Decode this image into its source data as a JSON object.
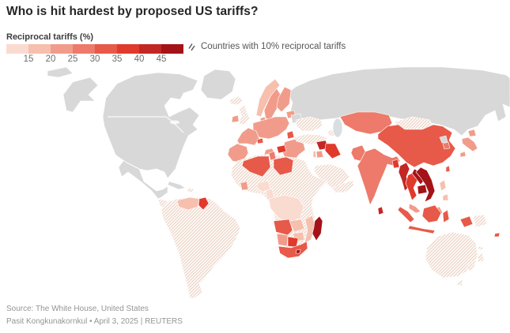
{
  "title": "Who is hit hardest by proposed US tariffs?",
  "footer": {
    "source": "Source: The White House, United States",
    "byline": "Pasit Kongkunakornkul • April 3, 2025 | REUTERS"
  },
  "colors": {
    "excluded_gray": "#d8d8d8",
    "hatch_stripe": "#eed6c9",
    "water": "#d9dee1",
    "border": "#ffffff",
    "title_text": "#252525",
    "note_text": "#565656",
    "source_text": "#959595"
  },
  "chart_data": {
    "type": "heatmap",
    "subtype": "world-choropleth",
    "title": "Who is hit hardest by proposed US tariffs?",
    "unit": "percent reciprocal tariff",
    "legend": {
      "label": "Reciprocal tariffs (%)",
      "ticks": [
        "15",
        "20",
        "25",
        "30",
        "35",
        "40",
        "45"
      ],
      "hatch_note": "Countries with 10% reciprocal tariffs"
    },
    "palette": [
      "#fadbd0",
      "#f6bfae",
      "#f19c8b",
      "#ed7a6a",
      "#e75948",
      "#e03a2c",
      "#c32723",
      "#a31318"
    ],
    "band_breaks": [
      15,
      20,
      25,
      30,
      35,
      40,
      45
    ],
    "regions": {
      "north-america": {
        "status": "excluded"
      },
      "greenland": {
        "status": "excluded"
      },
      "russia": {
        "status": "excluded"
      },
      "belarus": {
        "status": "excluded"
      },
      "cuba": {
        "status": "excluded"
      },
      "north-korea": {
        "status": "excluded"
      },
      "caspian-sea": {
        "status": "water"
      },
      "central-america": {
        "value": 10,
        "status": "hatched"
      },
      "nicaragua": {
        "value": 18
      },
      "hispaniola": {
        "value": 10,
        "status": "hatched"
      },
      "caribbean-islands": {
        "value": 10,
        "status": "hatched"
      },
      "south-america-most": {
        "value": 10,
        "status": "hatched"
      },
      "venezuela": {
        "value": 15
      },
      "guyana": {
        "value": 38
      },
      "iceland": {
        "value": 10,
        "status": "hatched"
      },
      "united-kingdom": {
        "value": 10,
        "status": "hatched"
      },
      "european-union": {
        "value": 20
      },
      "norway": {
        "value": 15
      },
      "switzerland": {
        "value": 31
      },
      "serbia-bosnia": {
        "value": 36
      },
      "moldova": {
        "value": 31
      },
      "ukraine": {
        "value": 10,
        "status": "hatched"
      },
      "turkey": {
        "value": 10,
        "status": "hatched"
      },
      "caucasus": {
        "value": 10,
        "status": "hatched"
      },
      "syria": {
        "value": 41
      },
      "iraq": {
        "value": 39
      },
      "israel": {
        "value": 17
      },
      "jordan": {
        "value": 20
      },
      "saudi-arabia": {
        "value": 10,
        "status": "hatched"
      },
      "yemen-oman": {
        "value": 10,
        "status": "hatched"
      },
      "africa-hatched-belt": {
        "value": 10,
        "status": "hatched"
      },
      "algeria": {
        "value": 30
      },
      "tunisia": {
        "value": 28
      },
      "libya": {
        "value": 31
      },
      "nigeria": {
        "value": 14
      },
      "cote-divoire": {
        "value": 21
      },
      "cameroon": {
        "value": 11
      },
      "central-africa": {
        "value": 11
      },
      "angola": {
        "value": 32
      },
      "zambia": {
        "value": 17
      },
      "zimbabwe": {
        "value": 18
      },
      "mozambique": {
        "value": 16
      },
      "namibia": {
        "value": 21
      },
      "botswana": {
        "value": 37
      },
      "south-africa": {
        "value": 30
      },
      "lesotho": {
        "value": 50
      },
      "madagascar": {
        "value": 47
      },
      "kazakhstan": {
        "value": 27
      },
      "mongolia": {
        "value": 10,
        "status": "hatched"
      },
      "china": {
        "value": 34
      },
      "south-korea": {
        "value": 25
      },
      "japan": {
        "value": 24
      },
      "taiwan": {
        "value": 32
      },
      "pakistan": {
        "value": 29
      },
      "india": {
        "value": 26
      },
      "bangladesh": {
        "value": 37
      },
      "sri-lanka": {
        "value": 44
      },
      "myanmar": {
        "value": 44
      },
      "thailand": {
        "value": 36
      },
      "laos": {
        "value": 48
      },
      "cambodia": {
        "value": 49
      },
      "vietnam": {
        "value": 46
      },
      "malaysia": {
        "value": 24
      },
      "indonesia": {
        "value": 32
      },
      "philippines": {
        "value": 17
      },
      "papua-new-guinea": {
        "value": 10,
        "status": "hatched"
      },
      "fiji": {
        "value": 32
      },
      "australia": {
        "value": 10,
        "status": "hatched"
      },
      "new-zealand": {
        "value": 10,
        "status": "hatched"
      },
      "new-caledonia": {
        "value": 10,
        "status": "hatched"
      }
    }
  }
}
